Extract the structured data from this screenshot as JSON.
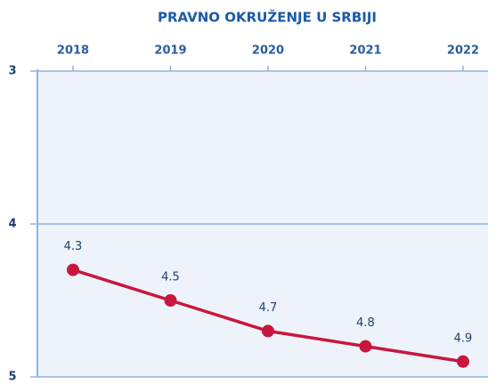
{
  "chart_data": {
    "type": "line",
    "title": "PRAVNO OKRUŽENJE U SRBIJI",
    "categories": [
      "2018",
      "2019",
      "2020",
      "2021",
      "2022"
    ],
    "series": [
      {
        "name": "Pravno okruženje",
        "color": "#c8173f",
        "values": [
          4.3,
          4.5,
          4.7,
          4.8,
          4.9
        ]
      }
    ],
    "ylim": [
      3,
      5
    ],
    "yticks": [
      3,
      4,
      5
    ],
    "y_inverted": true,
    "grid": true
  }
}
